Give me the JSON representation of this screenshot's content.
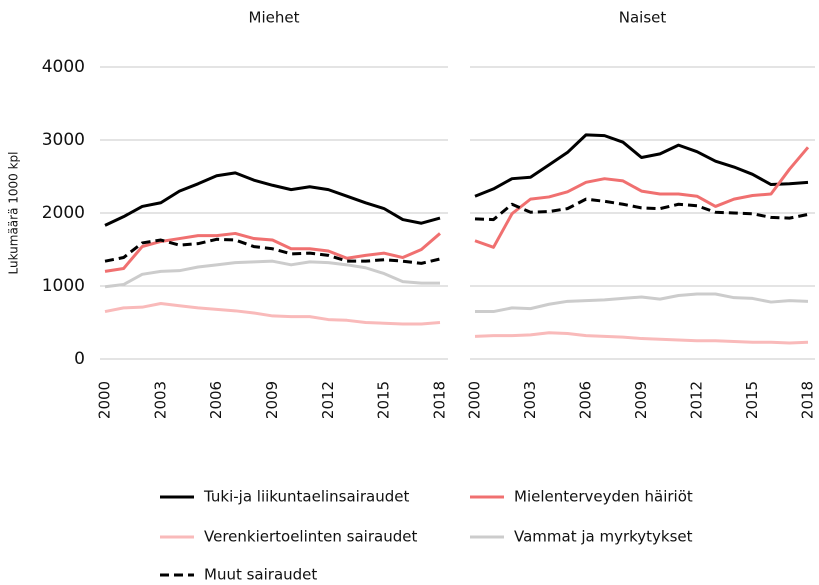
{
  "chart_data": {
    "type": "line",
    "ylabel": "Lukumäärä 1000 kpl",
    "x": [
      2000,
      2001,
      2002,
      2003,
      2004,
      2005,
      2006,
      2007,
      2008,
      2009,
      2010,
      2011,
      2012,
      2013,
      2014,
      2015,
      2016,
      2017,
      2018
    ],
    "xticks": [
      2000,
      2003,
      2006,
      2009,
      2012,
      2015,
      2018
    ],
    "ylim": [
      0,
      4000
    ],
    "yticks": [
      0,
      1000,
      2000,
      3000,
      4000
    ],
    "grid": true,
    "series": [
      {
        "name": "Tuki-ja liikuntaelinsairaudet",
        "color": "#000000",
        "dash": false
      },
      {
        "name": "Mielenterveyden häiriöt",
        "color": "#f07070",
        "dash": false
      },
      {
        "name": "Verenkiertoelinten sairaudet",
        "color": "#f9baba",
        "dash": false
      },
      {
        "name": "Vammat ja myrkytykset",
        "color": "#cccccc",
        "dash": false
      },
      {
        "name": "Muut sairaudet",
        "color": "#000000",
        "dash": true
      }
    ],
    "panels": [
      {
        "title": "Miehet",
        "series": [
          {
            "values": [
              1830,
              1950,
              2090,
              2140,
              2300,
              2400,
              2510,
              2550,
              2450,
              2380,
              2320,
              2360,
              2320,
              2230,
              2140,
              2060,
              1910,
              1860,
              1930
            ]
          },
          {
            "values": [
              1200,
              1240,
              1540,
              1610,
              1650,
              1690,
              1690,
              1720,
              1650,
              1630,
              1510,
              1510,
              1480,
              1380,
              1420,
              1450,
              1390,
              1500,
              1720
            ]
          },
          {
            "values": [
              650,
              700,
              710,
              760,
              730,
              700,
              680,
              660,
              630,
              590,
              580,
              580,
              540,
              530,
              500,
              490,
              480,
              480,
              500
            ]
          },
          {
            "values": [
              990,
              1020,
              1160,
              1200,
              1210,
              1260,
              1290,
              1320,
              1330,
              1340,
              1290,
              1330,
              1320,
              1290,
              1250,
              1170,
              1060,
              1040,
              1040
            ]
          },
          {
            "values": [
              1340,
              1390,
              1590,
              1630,
              1560,
              1580,
              1640,
              1630,
              1540,
              1510,
              1440,
              1450,
              1420,
              1340,
              1340,
              1360,
              1340,
              1310,
              1370
            ]
          }
        ]
      },
      {
        "title": "Naiset",
        "series": [
          {
            "values": [
              2230,
              2330,
              2470,
              2490,
              2660,
              2830,
              3070,
              3060,
              2970,
              2760,
              2810,
              2930,
              2840,
              2710,
              2630,
              2530,
              2390,
              2400,
              2420
            ]
          },
          {
            "values": [
              1620,
              1530,
              1990,
              2190,
              2220,
              2290,
              2420,
              2470,
              2440,
              2300,
              2260,
              2260,
              2230,
              2090,
              2190,
              2240,
              2260,
              2600,
              2900
            ]
          },
          {
            "values": [
              310,
              320,
              320,
              330,
              360,
              350,
              320,
              310,
              300,
              280,
              270,
              260,
              250,
              250,
              240,
              230,
              230,
              220,
              230
            ]
          },
          {
            "values": [
              650,
              650,
              700,
              690,
              750,
              790,
              800,
              810,
              830,
              850,
              820,
              870,
              890,
              890,
              840,
              830,
              780,
              800,
              790
            ]
          },
          {
            "values": [
              1920,
              1910,
              2120,
              2010,
              2020,
              2060,
              2190,
              2160,
              2120,
              2070,
              2060,
              2120,
              2100,
              2010,
              2000,
              1990,
              1940,
              1930,
              1980
            ]
          }
        ]
      }
    ]
  }
}
